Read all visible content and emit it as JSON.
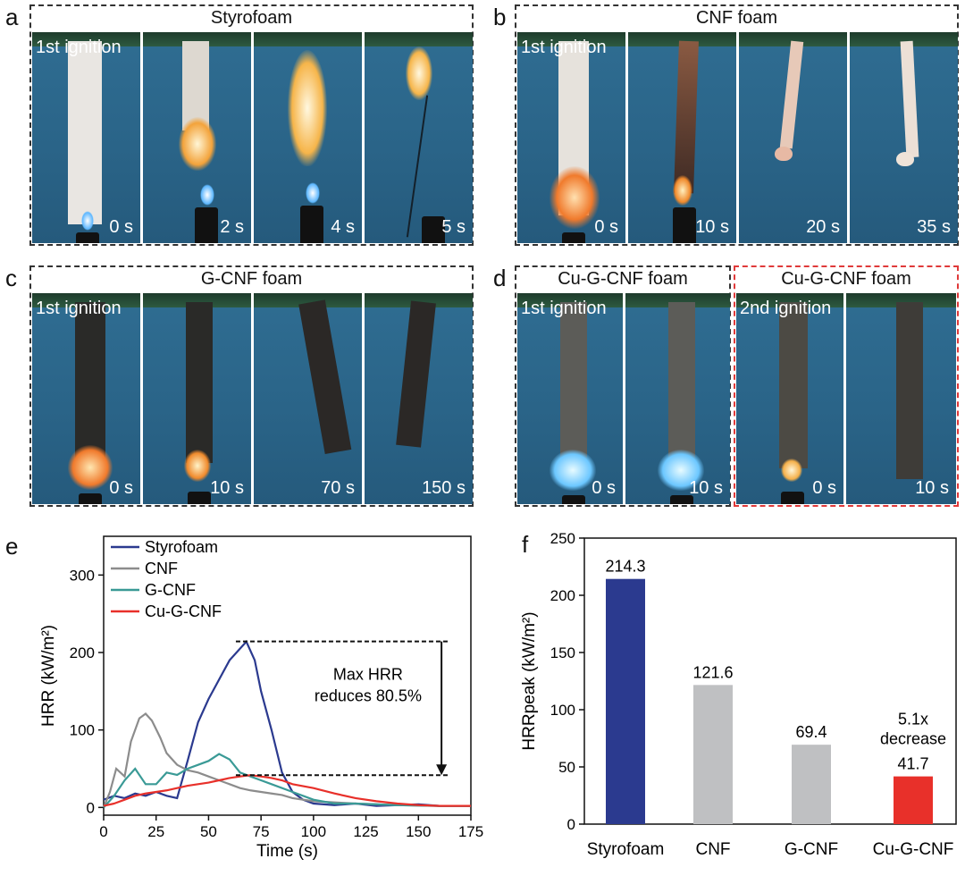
{
  "panels": {
    "a": {
      "letter": "a",
      "title": "Styrofoam",
      "ignition": "1st ignition",
      "times": [
        "0 s",
        "2 s",
        "4 s",
        "5 s"
      ]
    },
    "b": {
      "letter": "b",
      "title": "CNF foam",
      "ignition": "1st ignition",
      "times": [
        "0 s",
        "10 s",
        "20 s",
        "35 s"
      ]
    },
    "c": {
      "letter": "c",
      "title": "G-CNF foam",
      "ignition": "1st ignition",
      "times": [
        "0 s",
        "10 s",
        "70 s",
        "150 s"
      ]
    },
    "d": {
      "letter": "d",
      "title1": "Cu-G-CNF foam",
      "title2": "Cu-G-CNF foam",
      "ignition1": "1st ignition",
      "ignition2": "2nd ignition",
      "times": [
        "0 s",
        "10 s",
        "0 s",
        "10 s"
      ]
    }
  },
  "chart_data": [
    {
      "panel": "e",
      "type": "line",
      "xlabel": "Time (s)",
      "ylabel": "HRR (kW/m²)",
      "xlim": [
        0,
        175
      ],
      "ylim": [
        -10,
        350
      ],
      "xticks": [
        "0",
        "25",
        "50",
        "75",
        "100",
        "125",
        "150",
        "175"
      ],
      "yticks": [
        "0",
        "100",
        "200",
        "300"
      ],
      "annotation": [
        "Max HRR",
        "reduces 80.5%"
      ],
      "colors": {
        "Styrofoam": "#2b3a8f",
        "CNF": "#8c8c8c",
        "G-CNF": "#3a9a96",
        "Cu-G-CNF": "#e8302a"
      },
      "series": [
        {
          "name": "Styrofoam",
          "x": [
            0,
            5,
            10,
            15,
            20,
            25,
            30,
            35,
            40,
            45,
            50,
            55,
            60,
            65,
            68,
            72,
            75,
            80,
            85,
            90,
            95,
            100,
            110,
            120,
            130,
            140,
            150,
            160,
            175
          ],
          "y": [
            10,
            15,
            12,
            18,
            15,
            20,
            15,
            12,
            60,
            110,
            140,
            165,
            190,
            205,
            214,
            190,
            150,
            100,
            45,
            20,
            10,
            5,
            3,
            5,
            2,
            3,
            4,
            2,
            2
          ]
        },
        {
          "name": "CNF",
          "x": [
            0,
            3,
            6,
            10,
            13,
            17,
            20,
            23,
            27,
            30,
            35,
            40,
            45,
            50,
            55,
            60,
            65,
            70,
            75,
            80,
            85,
            90,
            100,
            120,
            140,
            160,
            175
          ],
          "y": [
            0,
            20,
            50,
            40,
            85,
            115,
            121,
            112,
            90,
            70,
            55,
            48,
            45,
            40,
            35,
            30,
            25,
            22,
            20,
            18,
            16,
            12,
            8,
            5,
            3,
            2,
            2
          ]
        },
        {
          "name": "G-CNF",
          "x": [
            0,
            5,
            10,
            15,
            20,
            25,
            30,
            35,
            40,
            45,
            50,
            55,
            60,
            65,
            70,
            75,
            80,
            90,
            100,
            110,
            120,
            140,
            160,
            175
          ],
          "y": [
            0,
            15,
            35,
            50,
            30,
            30,
            45,
            42,
            50,
            55,
            60,
            69,
            62,
            45,
            40,
            35,
            30,
            20,
            10,
            5,
            5,
            3,
            2,
            2
          ]
        },
        {
          "name": "Cu-G-CNF",
          "x": [
            0,
            5,
            10,
            15,
            20,
            25,
            30,
            35,
            40,
            45,
            50,
            55,
            60,
            65,
            70,
            75,
            80,
            85,
            90,
            100,
            110,
            120,
            130,
            140,
            150,
            160,
            175
          ],
          "y": [
            2,
            5,
            10,
            15,
            18,
            20,
            22,
            25,
            28,
            30,
            32,
            35,
            38,
            40,
            41.7,
            40,
            38,
            35,
            30,
            25,
            18,
            12,
            8,
            5,
            3,
            2,
            2
          ]
        }
      ]
    },
    {
      "panel": "f",
      "type": "bar",
      "ylabel": "HRRpeak (kW/m²)",
      "ylim": [
        0,
        250
      ],
      "yticks": [
        "0",
        "50",
        "100",
        "150",
        "200",
        "250"
      ],
      "categories": [
        "Styrofoam",
        "CNF",
        "G-CNF",
        "Cu-G-CNF"
      ],
      "values": [
        214.3,
        121.6,
        69.4,
        41.7
      ],
      "value_labels": [
        "214.3",
        "121.6",
        "69.4",
        "41.7"
      ],
      "colors": [
        "#2b3a8f",
        "#bfc0c2",
        "#bfc0c2",
        "#e8302a"
      ],
      "annotation": [
        "5.1x",
        "decrease"
      ]
    }
  ],
  "labels": {
    "e": "e",
    "f": "f"
  }
}
